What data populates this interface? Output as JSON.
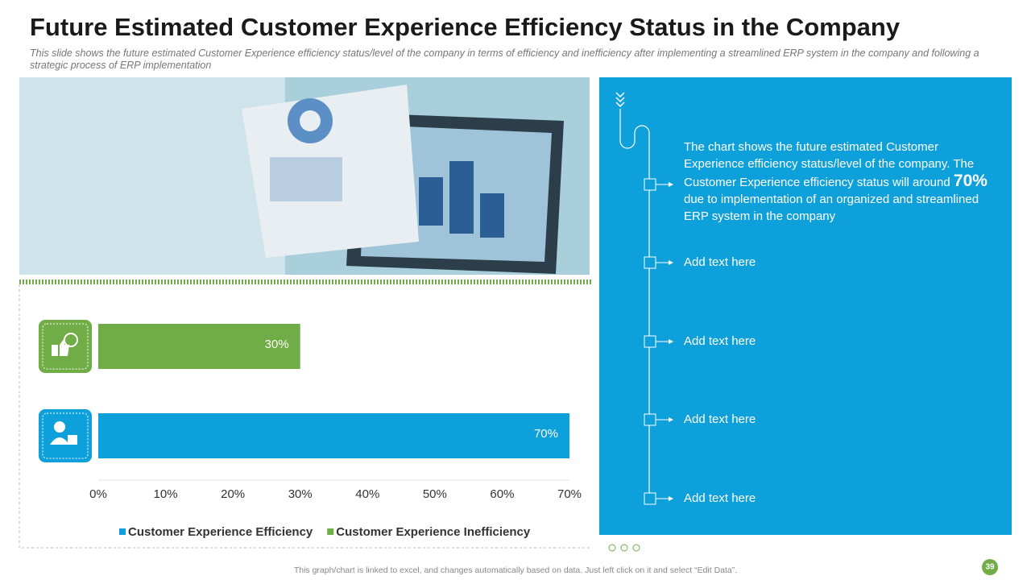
{
  "title": "Future Estimated Customer Experience Efficiency Status in the Company",
  "subtitle": "This slide shows the future estimated Customer Experience efficiency status/level of the company in terms of efficiency and inefficiency after implementing a streamlined ERP system in the company and following a strategic process of ERP implementation",
  "chart_data": {
    "type": "bar",
    "orientation": "horizontal",
    "series": [
      {
        "name": "Customer Experience Efficiency",
        "color": "#0ea0db",
        "values": [
          70
        ],
        "value_labels": [
          "70%"
        ]
      },
      {
        "name": "Customer Experience Inefficiency",
        "color": "#70ad47",
        "values": [
          30
        ],
        "value_labels": [
          "30%"
        ]
      }
    ],
    "xlim": [
      0,
      70
    ],
    "xticks": [
      {
        "value": 0,
        "label": "0%"
      },
      {
        "value": 10,
        "label": "10%"
      },
      {
        "value": 20,
        "label": "20%"
      },
      {
        "value": 30,
        "label": "30%"
      },
      {
        "value": 40,
        "label": "40%"
      },
      {
        "value": 50,
        "label": "50%"
      },
      {
        "value": 60,
        "label": "60%"
      },
      {
        "value": 70,
        "label": "70%"
      }
    ],
    "grid": false,
    "legend": "bottom"
  },
  "panel": {
    "text_before": "The chart shows the future estimated Customer Experience efficiency status/level of the company. The Customer Experience efficiency status will around",
    "highlight": "70%",
    "text_after": "due to implementation of an organized and streamlined ERP system in the company",
    "items": [
      "Add text here",
      "Add text here",
      "Add text here",
      "Add text here"
    ]
  },
  "footer": "This graph/chart is linked to excel, and changes automatically based on data. Just left click on it and select “Edit Data”.",
  "page_number": "39"
}
